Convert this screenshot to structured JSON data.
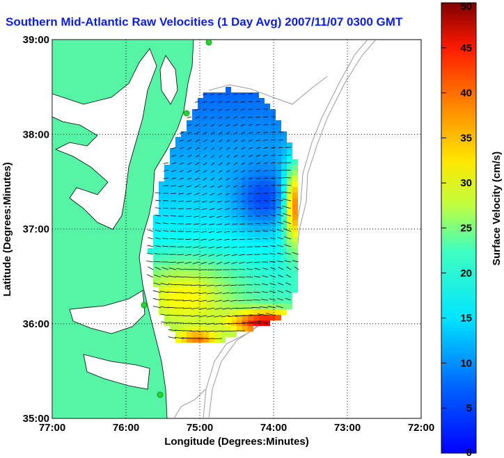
{
  "title": "Southern Mid-Atlantic Raw Velocities (1 Day Avg) 2007/11/07 0300 GMT",
  "chart_data": {
    "type": "map",
    "xlabel": "Longitude (Degrees:Minutes)",
    "ylabel": "Latitude (Degrees:Minutes)",
    "xlim": [
      -77,
      -72
    ],
    "ylim": [
      35,
      39
    ],
    "x_ticks": [
      "77:00",
      "76:00",
      "75:00",
      "74:00",
      "73:00",
      "72:00"
    ],
    "y_ticks": [
      "35:00",
      "36:00",
      "37:00",
      "38:00",
      "39:00"
    ],
    "grid": "dotted",
    "colorbar": {
      "label": "Surface Velocity (cm/s)",
      "range": [
        0,
        50
      ],
      "ticks": [
        "0",
        "5",
        "10",
        "15",
        "20",
        "25",
        "30",
        "35",
        "40",
        "45",
        "50"
      ],
      "colormap": "jet"
    },
    "land_color": "#55f5a5",
    "vector_color": "#000000"
  }
}
